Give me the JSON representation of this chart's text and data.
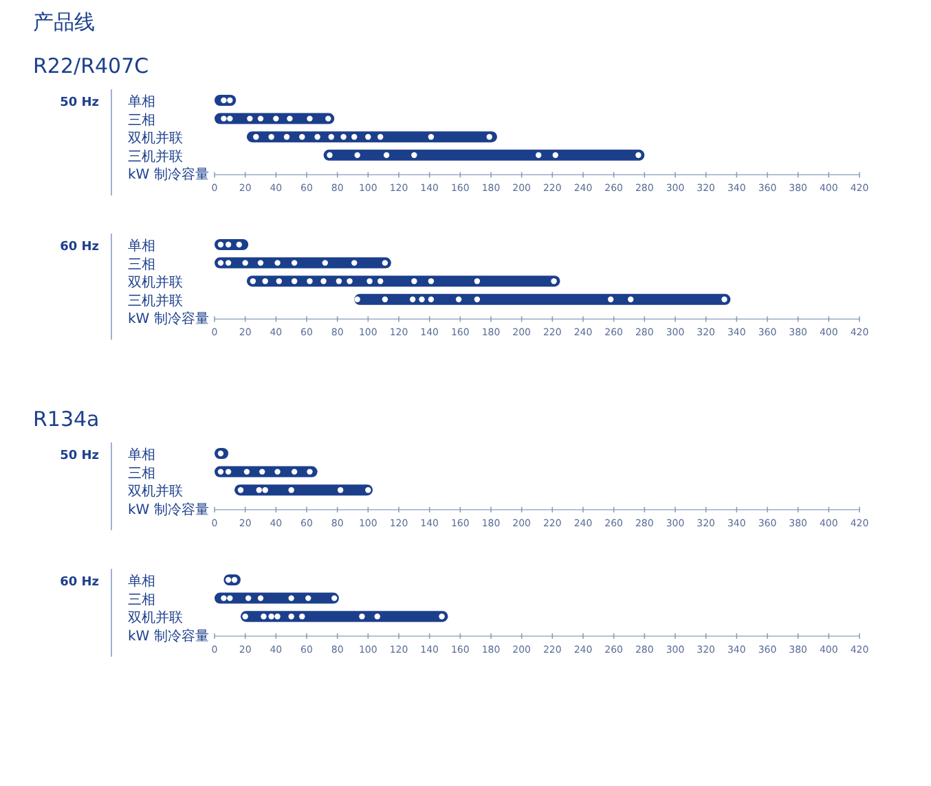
{
  "chart_data": [
    {
      "type": "bar",
      "orientation": "horizontal",
      "title": "产品线",
      "subtitle": "R22/R407C",
      "ylabel": "50 Hz",
      "xlabel": "kW 制冷容量",
      "categories": [
        "单相",
        "三相",
        "双机并联",
        "三机并联"
      ],
      "xlim": [
        0,
        420
      ],
      "xticks": [
        0,
        20,
        40,
        60,
        80,
        100,
        120,
        140,
        160,
        180,
        200,
        220,
        240,
        260,
        280,
        300,
        320,
        340,
        360,
        380,
        400,
        420
      ],
      "series": [
        {
          "type": "bar",
          "color": "#1c3f8c",
          "base": [
            0,
            0,
            21,
            71
          ],
          "values": [
            14,
            78,
            163,
            209
          ]
        },
        {
          "type": "scatter",
          "color": "#ffffff",
          "x": [
            "单相",
            "单相",
            "三相",
            "三相",
            "三相",
            "三相",
            "三相",
            "三相",
            "三相",
            "三相",
            "双机并联",
            "双机并联",
            "双机并联",
            "双机并联",
            "双机并联",
            "双机并联",
            "双机并联",
            "双机并联",
            "双机并联",
            "双机并联",
            "双机并联",
            "双机并联",
            "三机并联",
            "三机并联",
            "三机并联",
            "三机并联",
            "三机并联",
            "三机并联",
            "三机并联"
          ],
          "values": [
            6,
            10,
            6,
            10,
            23,
            30,
            40,
            49,
            62,
            74,
            27,
            37,
            47,
            57,
            67,
            76,
            84,
            91,
            100,
            108,
            141,
            179,
            75,
            93,
            112,
            130,
            211,
            222,
            276
          ]
        }
      ]
    },
    {
      "type": "bar",
      "orientation": "horizontal",
      "ylabel": "60 Hz",
      "xlabel": "kW 制冷容量",
      "categories": [
        "单相",
        "三相",
        "双机并联",
        "三机并联"
      ],
      "xlim": [
        0,
        420
      ],
      "xticks": [
        0,
        20,
        40,
        60,
        80,
        100,
        120,
        140,
        160,
        180,
        200,
        220,
        240,
        260,
        280,
        300,
        320,
        340,
        360,
        380,
        400,
        420
      ],
      "series": [
        {
          "type": "bar",
          "color": "#1c3f8c",
          "base": [
            0,
            0,
            21,
            91
          ],
          "values": [
            22,
            115,
            204,
            245
          ]
        },
        {
          "type": "scatter",
          "color": "#ffffff",
          "x": [
            "单相",
            "单相",
            "单相",
            "三相",
            "三相",
            "三相",
            "三相",
            "三相",
            "三相",
            "三相",
            "三相",
            "三相",
            "双机并联",
            "双机并联",
            "双机并联",
            "双机并联",
            "双机并联",
            "双机并联",
            "双机并联",
            "双机并联",
            "双机并联",
            "双机并联",
            "双机并联",
            "双机并联",
            "双机并联",
            "双机并联",
            "三机并联",
            "三机并联",
            "三机并联",
            "三机并联",
            "三机并联",
            "三机并联",
            "三机并联",
            "三机并联",
            "三机并联",
            "三机并联"
          ],
          "values": [
            4,
            9,
            16,
            4,
            9,
            20,
            30,
            41,
            52,
            72,
            91,
            111,
            25,
            33,
            42,
            52,
            62,
            71,
            81,
            88,
            101,
            108,
            130,
            141,
            171,
            221,
            93,
            111,
            129,
            135,
            141,
            159,
            171,
            258,
            271,
            332
          ]
        }
      ]
    },
    {
      "type": "bar",
      "orientation": "horizontal",
      "subtitle": "R134a",
      "ylabel": "50 Hz",
      "xlabel": "kW 制冷容量",
      "categories": [
        "单相",
        "三相",
        "双机并联"
      ],
      "xlim": [
        0,
        420
      ],
      "xticks": [
        0,
        20,
        40,
        60,
        80,
        100,
        120,
        140,
        160,
        180,
        200,
        220,
        240,
        260,
        280,
        300,
        320,
        340,
        360,
        380,
        400,
        420
      ],
      "series": [
        {
          "type": "bar",
          "color": "#1c3f8c",
          "base": [
            0,
            0,
            13
          ],
          "values": [
            9,
            67,
            90
          ]
        },
        {
          "type": "scatter",
          "color": "#ffffff",
          "x": [
            "单相",
            "三相",
            "三相",
            "三相",
            "三相",
            "三相",
            "三相",
            "三相",
            "双机并联",
            "双机并联",
            "双机并联",
            "双机并联",
            "双机并联",
            "双机并联"
          ],
          "values": [
            4,
            4,
            9,
            21,
            31,
            41,
            52,
            62,
            17,
            29,
            33,
            50,
            82,
            100
          ]
        }
      ]
    },
    {
      "type": "bar",
      "orientation": "horizontal",
      "ylabel": "60 Hz",
      "xlabel": "kW 制冷容量",
      "categories": [
        "单相",
        "三相",
        "双机并联"
      ],
      "xlim": [
        0,
        420
      ],
      "xticks": [
        0,
        20,
        40,
        60,
        80,
        100,
        120,
        140,
        160,
        180,
        200,
        220,
        240,
        260,
        280,
        300,
        320,
        340,
        360,
        380,
        400,
        420
      ],
      "series": [
        {
          "type": "bar",
          "color": "#1c3f8c",
          "base": [
            6,
            0,
            17
          ],
          "values": [
            11,
            81,
            135
          ]
        },
        {
          "type": "scatter",
          "color": "#ffffff",
          "x": [
            "单相",
            "单相",
            "三相",
            "三相",
            "三相",
            "三相",
            "三相",
            "三相",
            "三相",
            "双机并联",
            "双机并联",
            "双机并联",
            "双机并联",
            "双机并联",
            "双机并联",
            "双机并联",
            "双机并联",
            "双机并联"
          ],
          "values": [
            9,
            13,
            6,
            10,
            22,
            30,
            50,
            61,
            78,
            20,
            32,
            37,
            41,
            50,
            57,
            96,
            106,
            148
          ]
        }
      ]
    }
  ]
}
